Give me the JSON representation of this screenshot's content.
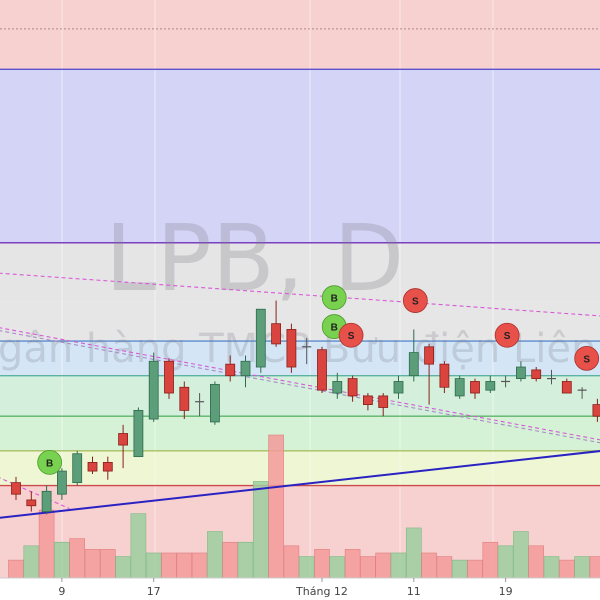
{
  "watermark": {
    "symbol": "LPB, D",
    "bank_name": "Ngân hàng TMCP Bưu điện Liên Việt"
  },
  "colors": {
    "up_fill": "#5c9e7a",
    "up_stroke": "#2e6b4c",
    "down_fill": "#d9443f",
    "down_stroke": "#8a1e1a",
    "vol_up": "#9ccf9f",
    "vol_down": "#f39a9a",
    "marker_buy": "#78d14f",
    "marker_sell": "#e8504a",
    "trendline": "#2a22c2",
    "channel": "#d65ad6"
  },
  "chart_data": {
    "type": "candlestick",
    "x_tick_labels": [
      {
        "index": 3,
        "label": "9"
      },
      {
        "index": 9,
        "label": "17"
      },
      {
        "index": 20,
        "label": "Tháng 12"
      },
      {
        "index": 26,
        "label": "11"
      },
      {
        "index": 32,
        "label": "19"
      }
    ],
    "price_range": [
      0,
      100
    ],
    "zones": [
      {
        "from": 95,
        "to": 100,
        "color": "#f7d0d0"
      },
      {
        "from": 88,
        "to": 95,
        "color": "#f7d0d0"
      },
      {
        "from": 58,
        "to": 88,
        "color": "#d4d4f7"
      },
      {
        "from": 48,
        "to": 58,
        "color": "#e5e5e5"
      },
      {
        "from": 41,
        "to": 48,
        "color": "#e6e6e6"
      },
      {
        "from": 35,
        "to": 41,
        "color": "#d4e6f5"
      },
      {
        "from": 28,
        "to": 35,
        "color": "#d4f0dc"
      },
      {
        "from": 22,
        "to": 28,
        "color": "#d6f2d6"
      },
      {
        "from": 16,
        "to": 22,
        "color": "#eef6d4"
      },
      {
        "from": 0,
        "to": 16,
        "color": "#f7d0d0"
      }
    ],
    "levels": [
      {
        "price": 95,
        "color": "#b08a8a",
        "dashed": true
      },
      {
        "price": 88,
        "color": "#5a52d0",
        "dashed": false
      },
      {
        "price": 58,
        "color": "#7a40c0",
        "dashed": false
      },
      {
        "price": 41,
        "color": "#5b8ccf",
        "dashed": false
      },
      {
        "price": 35,
        "color": "#5bb3a0",
        "dashed": false
      },
      {
        "price": 28,
        "color": "#5db36a",
        "dashed": false
      },
      {
        "price": 22,
        "color": "#a8c060",
        "dashed": false
      },
      {
        "price": 16,
        "color": "#cc4a4a",
        "dashed": false
      }
    ],
    "candles": [
      {
        "i": 0,
        "open": 16.5,
        "close": 14.5,
        "high": 17.5,
        "low": 13.5
      },
      {
        "i": 1,
        "open": 13.5,
        "close": 12.5,
        "high": 15,
        "low": 11.5
      },
      {
        "i": 2,
        "open": 11.5,
        "close": 15,
        "high": 16,
        "low": 11
      },
      {
        "i": 3,
        "open": 14.5,
        "close": 18.5,
        "high": 19,
        "low": 13.5
      },
      {
        "i": 4,
        "open": 16.5,
        "close": 21.5,
        "high": 22,
        "low": 16
      },
      {
        "i": 5,
        "open": 20,
        "close": 18.5,
        "high": 21,
        "low": 18
      },
      {
        "i": 6,
        "open": 20,
        "close": 18.5,
        "high": 21,
        "low": 17
      },
      {
        "i": 7,
        "open": 25,
        "close": 23,
        "high": 26.5,
        "low": 19
      },
      {
        "i": 8,
        "open": 21,
        "close": 29,
        "high": 29.5,
        "low": 21
      },
      {
        "i": 9,
        "open": 27.5,
        "close": 37.5,
        "high": 39,
        "low": 27
      },
      {
        "i": 10,
        "open": 37.5,
        "close": 32,
        "high": 38,
        "low": 31
      },
      {
        "i": 11,
        "open": 33,
        "close": 29,
        "high": 34,
        "low": 27.5
      },
      {
        "i": 12,
        "open": 30.5,
        "close": 30.5,
        "high": 32,
        "low": 28
      },
      {
        "i": 13,
        "open": 27,
        "close": 33.5,
        "high": 34,
        "low": 26.5
      },
      {
        "i": 14,
        "open": 37,
        "close": 35,
        "high": 38.5,
        "low": 34
      },
      {
        "i": 15,
        "open": 35,
        "close": 37.5,
        "high": 38.5,
        "low": 33
      },
      {
        "i": 16,
        "open": 36.5,
        "close": 46.5,
        "high": 46.5,
        "low": 35.5
      },
      {
        "i": 17,
        "open": 44,
        "close": 40.5,
        "high": 48,
        "low": 40
      },
      {
        "i": 18,
        "open": 43,
        "close": 36.5,
        "high": 44,
        "low": 35.5
      },
      {
        "i": 19,
        "open": 40,
        "close": 40,
        "high": 41.5,
        "low": 37
      },
      {
        "i": 20,
        "open": 39.5,
        "close": 32.5,
        "high": 40,
        "low": 32
      },
      {
        "i": 21,
        "open": 32,
        "close": 34,
        "high": 35.5,
        "low": 31
      },
      {
        "i": 22,
        "open": 34.5,
        "close": 31.5,
        "high": 35,
        "low": 30.5
      },
      {
        "i": 23,
        "open": 31.5,
        "close": 30,
        "high": 32,
        "low": 29
      },
      {
        "i": 24,
        "open": 31.5,
        "close": 29.5,
        "high": 32,
        "low": 28
      },
      {
        "i": 25,
        "open": 32,
        "close": 34,
        "high": 35,
        "low": 31
      },
      {
        "i": 26,
        "open": 35,
        "close": 39,
        "high": 43,
        "low": 34
      },
      {
        "i": 27,
        "open": 40,
        "close": 37,
        "high": 40.5,
        "low": 30
      },
      {
        "i": 28,
        "open": 37,
        "close": 33,
        "high": 37.5,
        "low": 32
      },
      {
        "i": 29,
        "open": 31.5,
        "close": 34.5,
        "high": 35,
        "low": 31
      },
      {
        "i": 30,
        "open": 34,
        "close": 32,
        "high": 34.5,
        "low": 31
      },
      {
        "i": 31,
        "open": 32.5,
        "close": 34,
        "high": 35,
        "low": 32
      },
      {
        "i": 32,
        "open": 34,
        "close": 34,
        "high": 35,
        "low": 33
      },
      {
        "i": 33,
        "open": 34.5,
        "close": 36.5,
        "high": 37.5,
        "low": 34
      },
      {
        "i": 34,
        "open": 36,
        "close": 34.5,
        "high": 36.5,
        "low": 34
      },
      {
        "i": 35,
        "open": 34.5,
        "close": 34.5,
        "high": 36,
        "low": 33.5
      },
      {
        "i": 36,
        "open": 34,
        "close": 32,
        "high": 34.5,
        "low": 32
      },
      {
        "i": 37,
        "open": 32.5,
        "close": 32.5,
        "high": 33,
        "low": 31
      },
      {
        "i": 38,
        "open": 30,
        "close": 28,
        "high": 31,
        "low": 27
      },
      {
        "i": 39,
        "open": 28,
        "close": 29.5,
        "high": 30.5,
        "low": 27.5
      }
    ],
    "volume": [
      {
        "i": 0,
        "v": 5,
        "dir": "down"
      },
      {
        "i": 1,
        "v": 9,
        "dir": "up"
      },
      {
        "i": 2,
        "v": 19,
        "dir": "down"
      },
      {
        "i": 3,
        "v": 10,
        "dir": "up"
      },
      {
        "i": 4,
        "v": 11,
        "dir": "down"
      },
      {
        "i": 5,
        "v": 8,
        "dir": "down"
      },
      {
        "i": 6,
        "v": 8,
        "dir": "down"
      },
      {
        "i": 7,
        "v": 6,
        "dir": "up"
      },
      {
        "i": 8,
        "v": 18,
        "dir": "up"
      },
      {
        "i": 9,
        "v": 7,
        "dir": "up"
      },
      {
        "i": 10,
        "v": 7,
        "dir": "down"
      },
      {
        "i": 11,
        "v": 7,
        "dir": "down"
      },
      {
        "i": 12,
        "v": 7,
        "dir": "down"
      },
      {
        "i": 13,
        "v": 13,
        "dir": "up"
      },
      {
        "i": 14,
        "v": 10,
        "dir": "down"
      },
      {
        "i": 15,
        "v": 10,
        "dir": "up"
      },
      {
        "i": 16,
        "v": 27,
        "dir": "up"
      },
      {
        "i": 17,
        "v": 40,
        "dir": "down"
      },
      {
        "i": 18,
        "v": 9,
        "dir": "down"
      },
      {
        "i": 19,
        "v": 6,
        "dir": "up"
      },
      {
        "i": 20,
        "v": 8,
        "dir": "down"
      },
      {
        "i": 21,
        "v": 6,
        "dir": "up"
      },
      {
        "i": 22,
        "v": 8,
        "dir": "down"
      },
      {
        "i": 23,
        "v": 6,
        "dir": "down"
      },
      {
        "i": 24,
        "v": 7,
        "dir": "down"
      },
      {
        "i": 25,
        "v": 7,
        "dir": "up"
      },
      {
        "i": 26,
        "v": 14,
        "dir": "up"
      },
      {
        "i": 27,
        "v": 7,
        "dir": "down"
      },
      {
        "i": 28,
        "v": 6,
        "dir": "down"
      },
      {
        "i": 29,
        "v": 5,
        "dir": "up"
      },
      {
        "i": 30,
        "v": 5,
        "dir": "down"
      },
      {
        "i": 31,
        "v": 10,
        "dir": "down"
      },
      {
        "i": 32,
        "v": 9,
        "dir": "up"
      },
      {
        "i": 33,
        "v": 13,
        "dir": "up"
      },
      {
        "i": 34,
        "v": 9,
        "dir": "down"
      },
      {
        "i": 35,
        "v": 6,
        "dir": "up"
      },
      {
        "i": 36,
        "v": 5,
        "dir": "down"
      },
      {
        "i": 37,
        "v": 6,
        "dir": "up"
      },
      {
        "i": 38,
        "v": 6,
        "dir": "down"
      },
      {
        "i": 39,
        "v": 7,
        "dir": "up"
      }
    ],
    "volume_max": 40,
    "signals": [
      {
        "type": "buy",
        "text": "B",
        "i": 2.2,
        "price": 20
      },
      {
        "type": "buy",
        "text": "B",
        "i": 20.8,
        "price": 43.5
      },
      {
        "type": "buy",
        "text": "B",
        "i": 20.8,
        "price": 48.5
      },
      {
        "type": "sell",
        "text": "S",
        "i": 21.9,
        "price": 42
      },
      {
        "type": "sell",
        "text": "S",
        "i": 26.1,
        "price": 48
      },
      {
        "type": "sell",
        "text": "S",
        "i": 32.1,
        "price": 42
      },
      {
        "type": "sell",
        "text": "S",
        "i": 37.3,
        "price": 38
      }
    ],
    "trendlines": [
      {
        "name": "support",
        "from": [
          -2.5,
          10
        ],
        "to": [
          40,
          22.5
        ],
        "style": "solid",
        "color": "#2a22c2"
      },
      {
        "name": "channel-top",
        "from": [
          -2.5,
          53
        ],
        "to": [
          40,
          45
        ],
        "style": "dashed",
        "color": "#d65ad6"
      },
      {
        "name": "channel-mid",
        "from": [
          -2.5,
          44
        ],
        "to": [
          40,
          23
        ],
        "style": "dashed",
        "color": "#d65ad6"
      },
      {
        "name": "channel-mid-2",
        "from": [
          -2.5,
          43.5
        ],
        "to": [
          40,
          22.5
        ],
        "style": "dashed",
        "color": "#a98cc7"
      },
      {
        "name": "channel-low",
        "from": [
          -2.5,
          19
        ],
        "to": [
          3.5,
          12
        ],
        "style": "dashed",
        "color": "#d65ad6"
      }
    ]
  }
}
